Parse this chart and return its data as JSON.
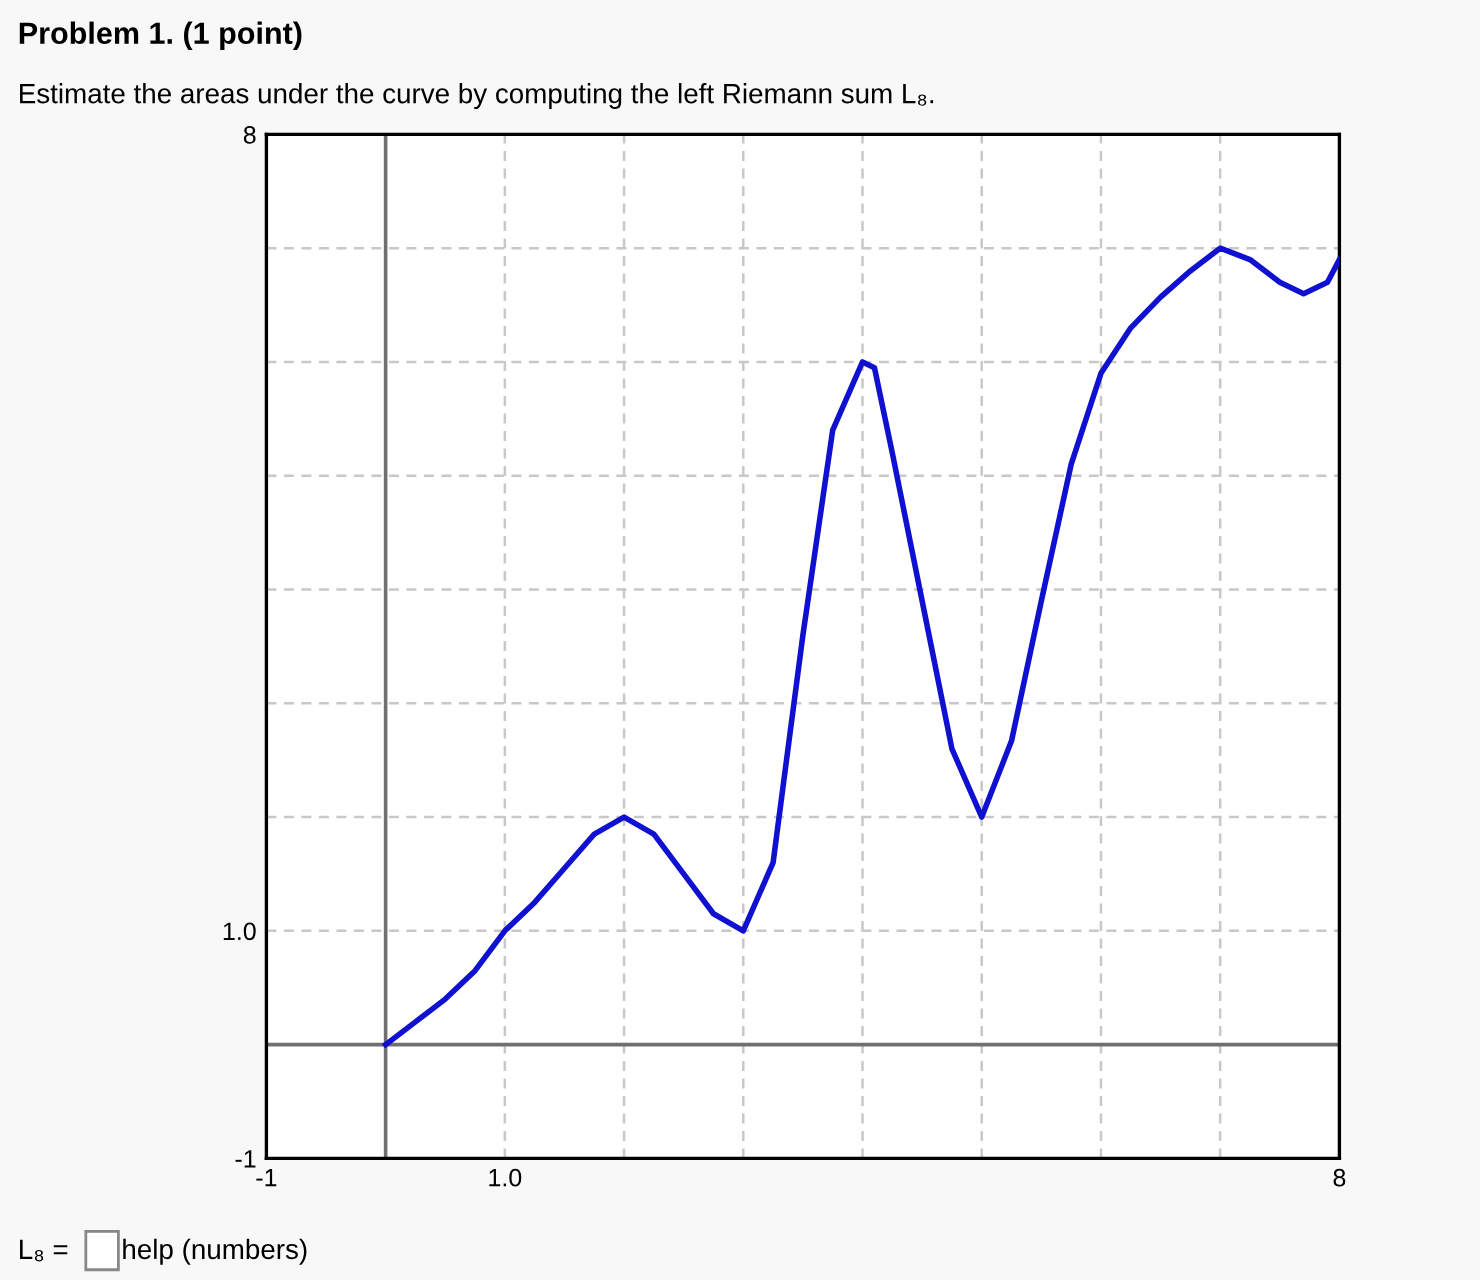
{
  "chart_data": {
    "type": "line",
    "title": "Problem 1. (1 point)",
    "subtitle": "Estimate the areas under the curve by computing the left Riemann sum L₈.",
    "x": [
      0,
      0.25,
      0.5,
      0.75,
      1,
      1.25,
      1.5,
      1.75,
      2,
      2.25,
      2.5,
      2.75,
      3,
      3.25,
      3.5,
      3.75,
      4,
      4.1,
      4.25,
      4.5,
      4.75,
      5,
      5.25,
      5.5,
      5.75,
      6,
      6.25,
      6.5,
      6.75,
      7,
      7.25,
      7.5,
      7.7,
      7.9,
      8
    ],
    "series": [
      {
        "color": "#1010d0",
        "values": [
          0,
          0.2,
          0.4,
          0.65,
          1,
          1.25,
          1.55,
          1.85,
          2,
          1.85,
          1.5,
          1.15,
          1,
          1.6,
          3.6,
          5.4,
          6,
          5.95,
          5.2,
          3.9,
          2.6,
          2,
          2.67,
          3.9,
          5.1,
          5.9,
          6.3,
          6.57,
          6.8,
          7,
          6.9,
          6.7,
          6.6,
          6.7,
          6.9
        ]
      }
    ],
    "xlim": [
      -1,
      8
    ],
    "ylim": [
      -1,
      8
    ],
    "xticks": [
      {
        "value": -1,
        "label": "-1"
      },
      {
        "value": 0,
        "label": null
      },
      {
        "value": 1,
        "label": "1.0"
      },
      {
        "value": 2,
        "label": null
      },
      {
        "value": 3,
        "label": null
      },
      {
        "value": 4,
        "label": null
      },
      {
        "value": 5,
        "label": null
      },
      {
        "value": 6,
        "label": null
      },
      {
        "value": 7,
        "label": null
      },
      {
        "value": 8,
        "label": "8"
      }
    ],
    "yticks": [
      {
        "value": -1,
        "label": "-1"
      },
      {
        "value": 0,
        "label": null
      },
      {
        "value": 1,
        "label": "1.0"
      },
      {
        "value": 2,
        "label": null
      },
      {
        "value": 3,
        "label": null
      },
      {
        "value": 4,
        "label": null
      },
      {
        "value": 5,
        "label": null
      },
      {
        "value": 6,
        "label": null
      },
      {
        "value": 7,
        "label": null
      },
      {
        "value": 8,
        "label": "8"
      }
    ],
    "grid": true,
    "marker": "none",
    "line_style": "solid",
    "annotations": [
      "L₈ =",
      "help (numbers)"
    ]
  }
}
